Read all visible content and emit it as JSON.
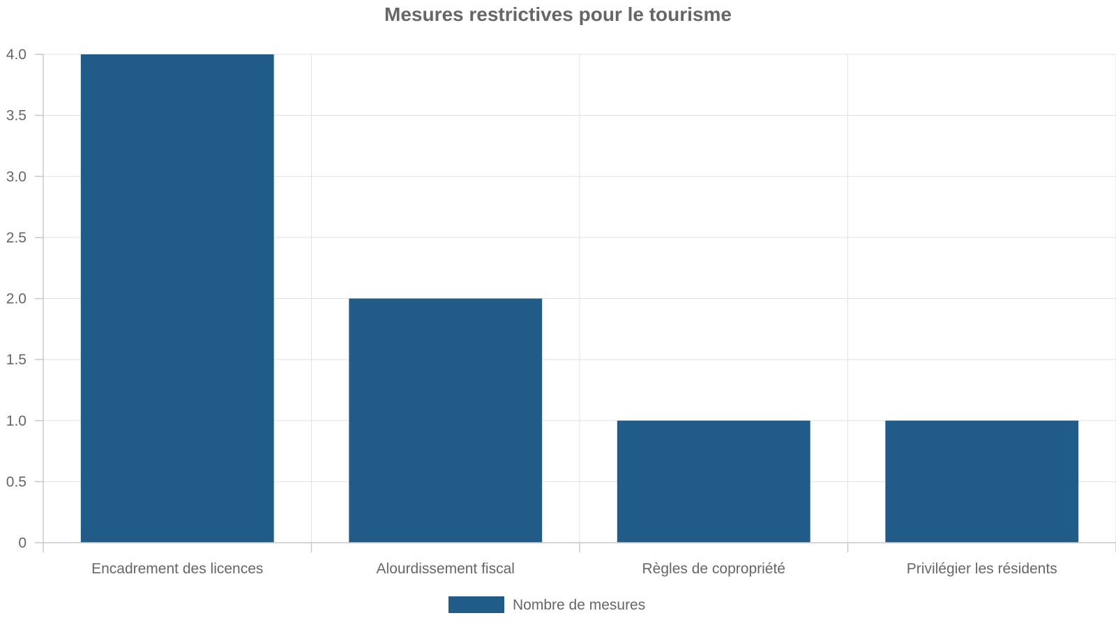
{
  "chart_data": {
    "type": "bar",
    "title": "Mesures restrictives pour le tourisme",
    "categories": [
      "Encadrement des licences",
      "Alourdissement fiscal",
      "Règles de copropriété",
      "Privilégier les résidents"
    ],
    "series": [
      {
        "name": "Nombre de mesures",
        "values": [
          4,
          2,
          1,
          1
        ],
        "color": "#205c87"
      }
    ],
    "yticks": [
      "0",
      "0.5",
      "1.0",
      "1.5",
      "2.0",
      "2.5",
      "3.0",
      "3.5",
      "4.0"
    ],
    "ylim": [
      0,
      4
    ],
    "grid": true,
    "legend_position": "bottom"
  }
}
